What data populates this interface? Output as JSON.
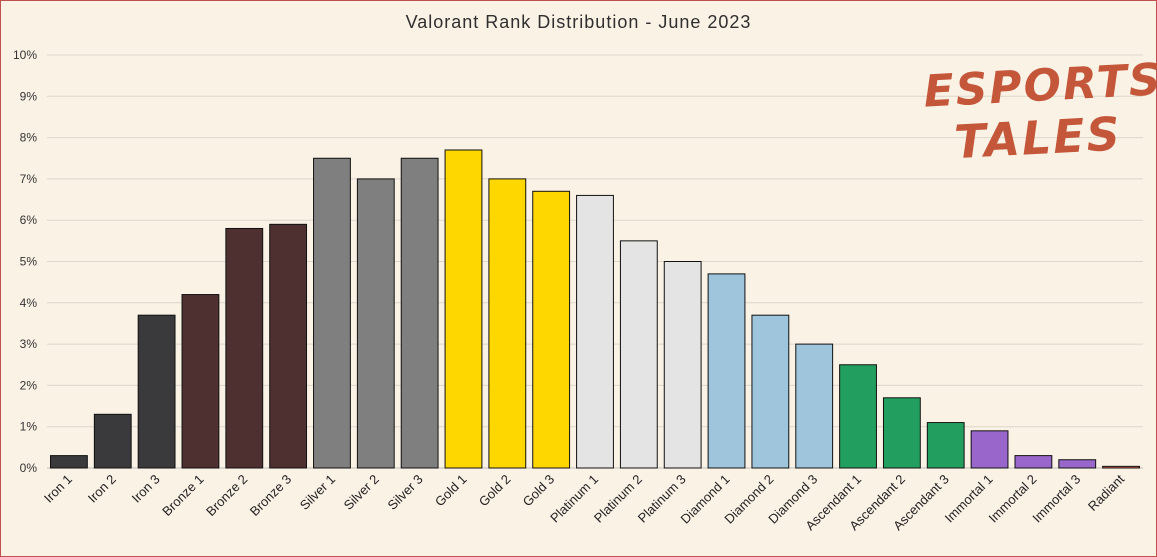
{
  "chart_data": {
    "type": "bar",
    "title": "Valorant Rank Distribution  - June 2023",
    "xlabel": "",
    "ylabel": "",
    "ylim": [
      0,
      10
    ],
    "y_ticks": [
      "0%",
      "1%",
      "2%",
      "3%",
      "4%",
      "5%",
      "6%",
      "7%",
      "8%",
      "9%",
      "10%"
    ],
    "grid": true,
    "categories": [
      "Iron 1",
      "Iron 2",
      "Iron 3",
      "Bronze 1",
      "Bronze 2",
      "Bronze 3",
      "Silver 1",
      "Silver 2",
      "Silver 3",
      "Gold 1",
      "Gold 2",
      "Gold 3",
      "Platinum 1",
      "Platinum 2",
      "Platinum 3",
      "Diamond 1",
      "Diamond 2",
      "Diamond 3",
      "Ascendant 1",
      "Ascendant 2",
      "Ascendant 3",
      "Immortal 1",
      "Immortal 2",
      "Immortal 3",
      "Radiant"
    ],
    "values": [
      0.3,
      1.3,
      3.7,
      4.2,
      5.8,
      5.9,
      7.5,
      7.0,
      7.5,
      7.7,
      7.0,
      6.7,
      6.6,
      5.5,
      5.0,
      4.7,
      3.7,
      3.0,
      2.5,
      1.7,
      1.1,
      0.9,
      0.3,
      0.2,
      0.04
    ],
    "colors": [
      "#3a3a3d",
      "#3a3a3d",
      "#3a3a3d",
      "#4e3030",
      "#4e3030",
      "#4e3030",
      "#7f7f7f",
      "#7f7f7f",
      "#7f7f7f",
      "#ffd700",
      "#ffd700",
      "#ffd700",
      "#e4e4e4",
      "#e4e4e4",
      "#e4e4e4",
      "#9ec5dc",
      "#9ec5dc",
      "#9ec5dc",
      "#229f5e",
      "#229f5e",
      "#229f5e",
      "#9966cc",
      "#9966cc",
      "#9966cc",
      "#e8704a"
    ]
  },
  "logo": {
    "line1": "ESPORTS",
    "line2": "TALES",
    "color": "#c4573a"
  }
}
